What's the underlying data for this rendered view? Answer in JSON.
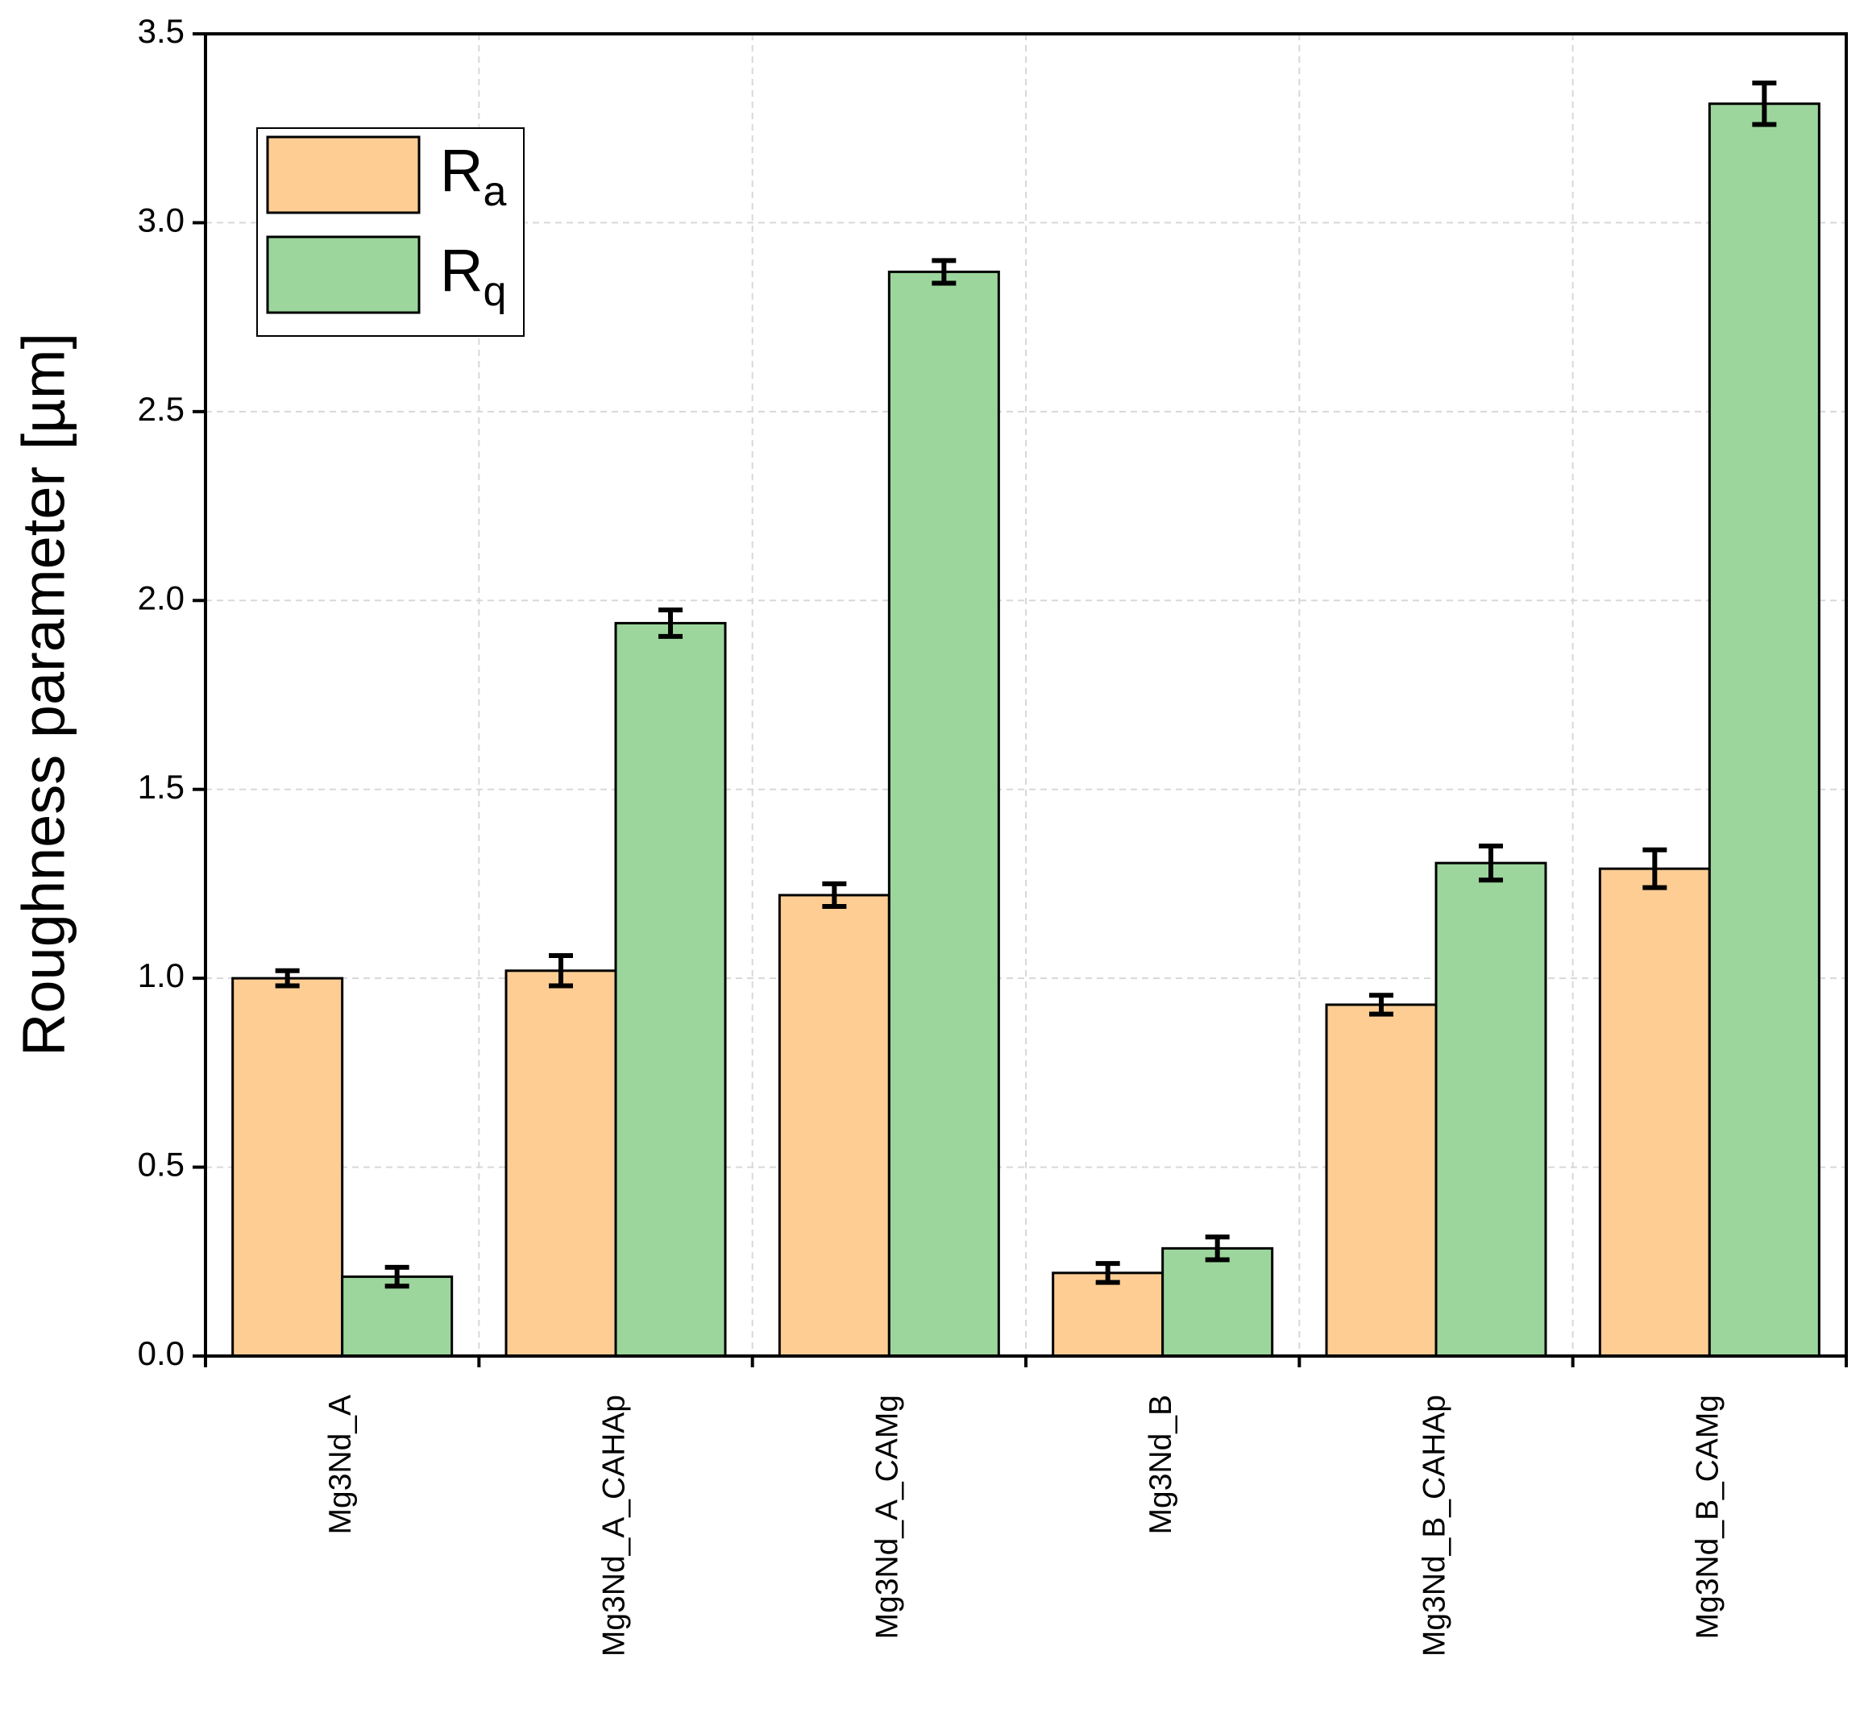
{
  "chart_data": {
    "type": "bar",
    "y_label": "Roughness parameter [µm]",
    "categories": [
      "Mg3Nd_A",
      "Mg3Nd_A_CAHAp",
      "Mg3Nd_A_CAMg",
      "Mg3Nd_B",
      "Mg3Nd_B_CAHAp",
      "Mg3Nd_B_CAMg"
    ],
    "series": [
      {
        "name": "Ra",
        "color": "#fdcd94",
        "values": [
          1.0,
          1.02,
          1.22,
          0.22,
          0.93,
          1.29
        ],
        "errors": [
          0.02,
          0.04,
          0.03,
          0.025,
          0.025,
          0.05
        ]
      },
      {
        "name": "Rq",
        "color": "#9cd69c",
        "values": [
          0.21,
          1.94,
          2.87,
          0.285,
          1.305,
          3.315
        ],
        "errors": [
          0.025,
          0.035,
          0.03,
          0.03,
          0.045,
          0.055
        ]
      }
    ],
    "ylim": [
      0,
      3.5
    ],
    "yticks": [
      {
        "value": 0,
        "label": "0.0"
      },
      0.5,
      {
        "value": 1,
        "label": "1.0"
      },
      1.5,
      {
        "value": 2,
        "label": "2.0"
      },
      2.5,
      {
        "value": 3,
        "label": "3.0"
      },
      3.5
    ],
    "grid": true,
    "legend": "upper left"
  }
}
